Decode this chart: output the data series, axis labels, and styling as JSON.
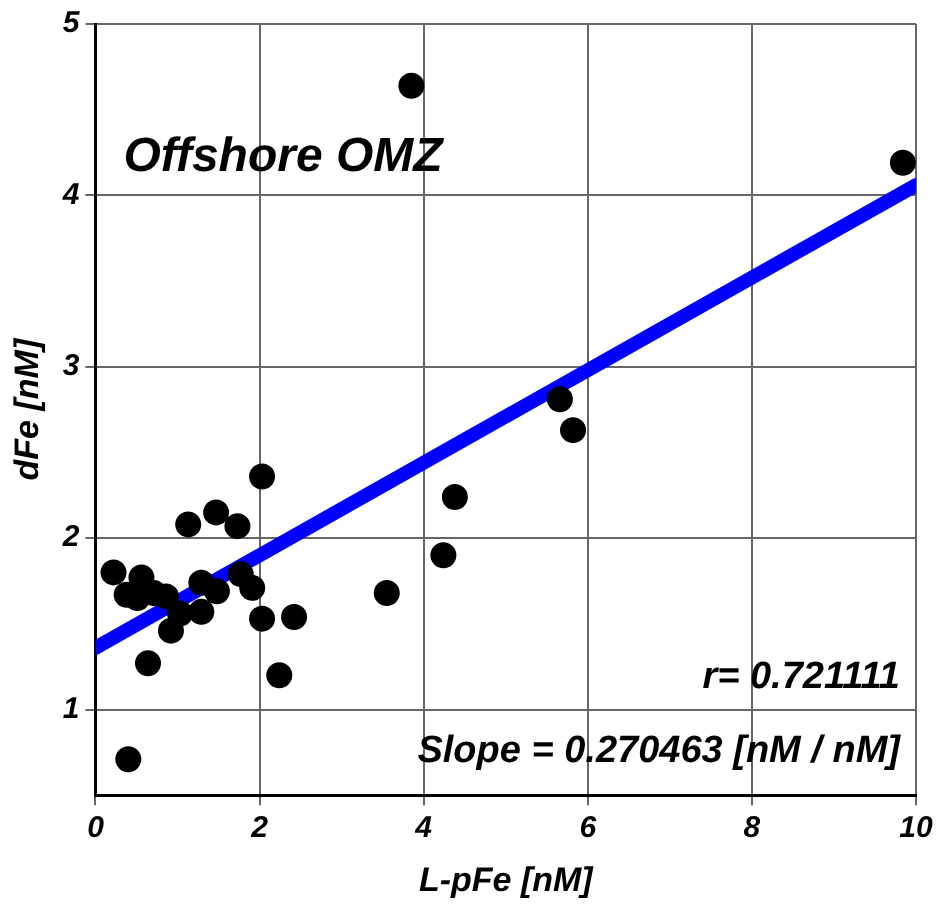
{
  "chart_data": {
    "type": "scatter",
    "xlabel": "L-pFe [nM]",
    "ylabel": "dFe [nM]",
    "annotations": [
      "Offshore OMZ",
      "r= 0.721111",
      "Slope = 0.270463 [nM / nM]"
    ],
    "xlim": [
      0,
      10
    ],
    "xticks": [
      0,
      2,
      4,
      6,
      8,
      10
    ],
    "ylim": [
      0.5,
      5
    ],
    "yticks": [
      1,
      2,
      3,
      4,
      5
    ],
    "grid": true,
    "marker": "circle",
    "series": [
      {
        "color": "#000000",
        "x": [
          0.22,
          0.38,
          0.51,
          0.56,
          0.71,
          0.86,
          0.92,
          1.03,
          1.13,
          1.29,
          1.29,
          1.47,
          1.48,
          1.73,
          1.77,
          1.91,
          2.03,
          2.03,
          2.24,
          2.42,
          3.55,
          0.64,
          0.4,
          3.85,
          9.84,
          5.66,
          5.82,
          4.38,
          4.24
        ],
        "values": [
          1.8,
          1.67,
          1.65,
          1.77,
          1.68,
          1.66,
          1.46,
          1.56,
          2.08,
          1.74,
          1.57,
          2.15,
          1.69,
          2.07,
          1.79,
          1.71,
          2.36,
          1.53,
          1.2,
          1.54,
          1.68,
          1.27,
          0.71,
          4.64,
          4.19,
          2.81,
          2.63,
          2.24,
          1.9
        ]
      },
      {
        "type": "line",
        "color": "#0000ff",
        "marker": "none",
        "x": [
          0,
          10
        ],
        "values": [
          1.36,
          4.06
        ]
      }
    ]
  }
}
